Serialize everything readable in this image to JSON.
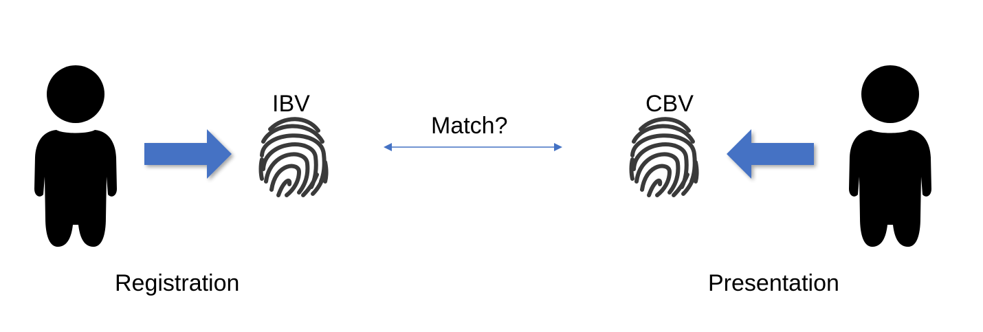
{
  "diagram": {
    "left": {
      "caption": "Registration",
      "template_label": "IBV"
    },
    "right": {
      "caption": "Presentation",
      "template_label": "CBV"
    },
    "comparison_label": "Match?",
    "colors": {
      "arrow_fill": "#4472c4",
      "connector": "#4472c4",
      "person": "#000000",
      "fingerprint": "#3a3a3a",
      "background": "#ffffff"
    }
  }
}
